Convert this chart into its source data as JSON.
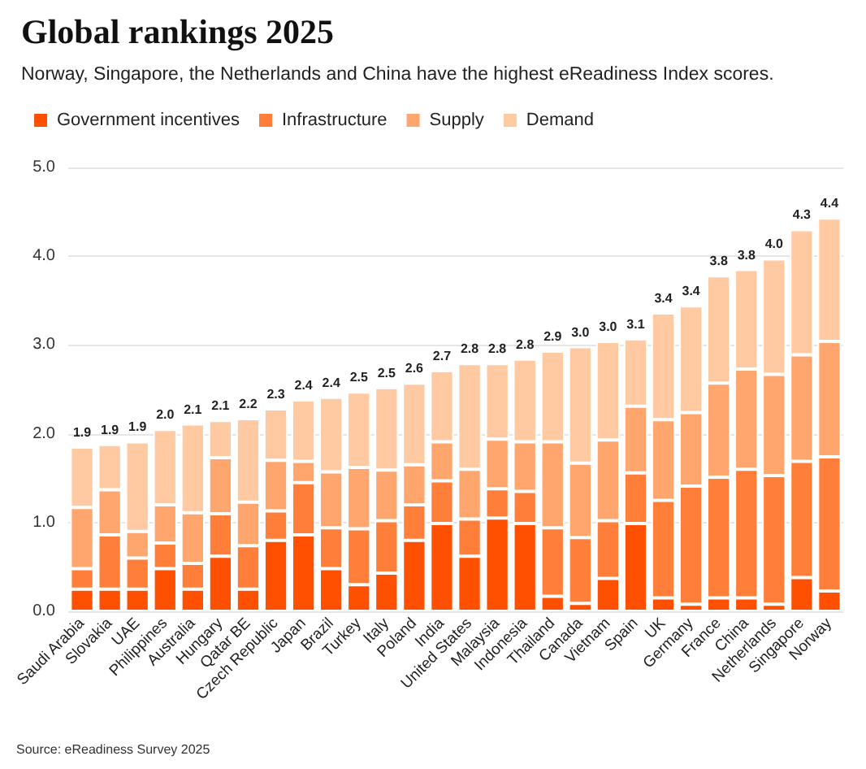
{
  "chart_data": {
    "type": "bar",
    "stacked": true,
    "title": "Global rankings 2025",
    "subtitle": "Norway, Singapore, the Netherlands and China have the highest eReadiness Index scores.",
    "categories": [
      "Saudi Arabia",
      "Slovakia",
      "UAE",
      "Philippines",
      "Australia",
      "Hungary",
      "Qatar BE",
      "Czech Republic",
      "Japan",
      "Brazil",
      "Turkey",
      "Italy",
      "Poland",
      "India",
      "United States",
      "Malaysia",
      "Indonesia",
      "Thailand",
      "Canada",
      "Vietnam",
      "Spain",
      "UK",
      "Germany",
      "France",
      "China",
      "Netherlands",
      "Singapore",
      "Norway"
    ],
    "series": [
      {
        "name": "Government incentives",
        "color": "#fe5000",
        "values": [
          0.25,
          0.25,
          0.25,
          0.48,
          0.25,
          0.62,
          0.25,
          0.8,
          0.86,
          0.48,
          0.3,
          0.43,
          0.8,
          0.99,
          0.62,
          1.05,
          0.99,
          0.17,
          0.09,
          0.37,
          0.99,
          0.15,
          0.08,
          0.15,
          0.15,
          0.08,
          0.38,
          0.23
        ]
      },
      {
        "name": "Infrastructure",
        "color": "#ff7f3a",
        "values": [
          0.23,
          0.61,
          0.35,
          0.29,
          0.29,
          0.48,
          0.49,
          0.33,
          0.59,
          0.46,
          0.63,
          0.59,
          0.4,
          0.48,
          0.42,
          0.33,
          0.36,
          0.77,
          0.74,
          0.65,
          0.57,
          1.1,
          1.33,
          1.36,
          1.45,
          1.45,
          1.31,
          1.51
        ]
      },
      {
        "name": "Supply",
        "color": "#ffa66e",
        "values": [
          0.69,
          0.51,
          0.3,
          0.43,
          0.57,
          0.63,
          0.49,
          0.57,
          0.24,
          0.63,
          0.69,
          0.57,
          0.45,
          0.44,
          0.56,
          0.56,
          0.56,
          0.97,
          0.84,
          0.91,
          0.75,
          0.91,
          0.83,
          1.06,
          1.13,
          1.14,
          1.2,
          1.3
        ]
      },
      {
        "name": "Demand",
        "color": "#ffc9a2",
        "values": [
          0.68,
          0.51,
          1.01,
          0.85,
          1.0,
          0.42,
          0.94,
          0.58,
          0.69,
          0.84,
          0.85,
          0.93,
          0.92,
          0.8,
          1.19,
          0.85,
          0.93,
          1.02,
          1.31,
          1.11,
          0.76,
          1.2,
          1.2,
          1.21,
          1.12,
          1.3,
          1.41,
          1.39
        ]
      }
    ],
    "totals": [
      "1.9",
      "1.9",
      "1.9",
      "2.0",
      "2.1",
      "2.1",
      "2.2",
      "2.3",
      "2.4",
      "2.4",
      "2.5",
      "2.5",
      "2.6",
      "2.7",
      "2.8",
      "2.8",
      "2.8",
      "2.9",
      "3.0",
      "3.0",
      "3.1",
      "3.4",
      "3.4",
      "3.8",
      "3.8",
      "4.0",
      "4.3",
      "4.4"
    ],
    "ylim": [
      0,
      5
    ],
    "yticks": [
      {
        "value": 0,
        "label": "0.0"
      },
      {
        "value": 1,
        "label": "1.0"
      },
      {
        "value": 2,
        "label": "2.0"
      },
      {
        "value": 3,
        "label": "3.0"
      },
      {
        "value": 4,
        "label": "4.0"
      },
      {
        "value": 5,
        "label": "5.0"
      }
    ],
    "grid": "y",
    "legend": "top left",
    "annotations": [
      "Source: eReadiness Survey 2025"
    ]
  }
}
